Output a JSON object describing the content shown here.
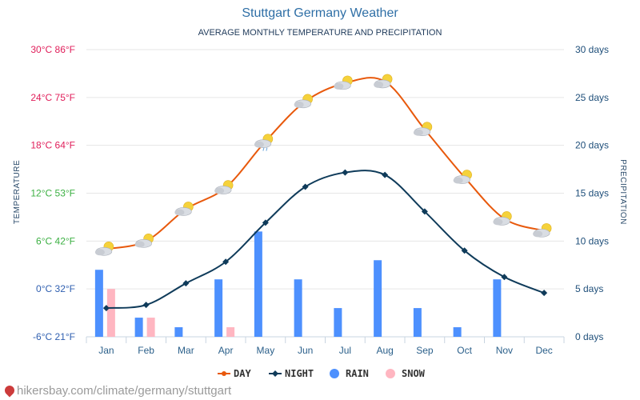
{
  "chart_data": {
    "type": "line",
    "title": "Stuttgart Germany Weather",
    "subtitle": "AVERAGE MONTHLY TEMPERATURE AND PRECIPITATION",
    "categories": [
      "Jan",
      "Feb",
      "Mar",
      "Apr",
      "May",
      "Jun",
      "Jul",
      "Aug",
      "Sep",
      "Oct",
      "Nov",
      "Dec"
    ],
    "ylabel": "TEMPERATURE",
    "y2label": "PRECIPITATION",
    "ylim": [
      -6,
      30
    ],
    "y2lim": [
      0,
      30
    ],
    "yticks": [
      {
        "c": -6,
        "label": "-6°C 21°F"
      },
      {
        "c": 0,
        "label": "0°C 32°F"
      },
      {
        "c": 6,
        "label": "6°C 42°F"
      },
      {
        "c": 12,
        "label": "12°C 53°F"
      },
      {
        "c": 18,
        "label": "18°C 64°F"
      },
      {
        "c": 24,
        "label": "24°C 75°F"
      },
      {
        "c": 30,
        "label": "30°C 86°F"
      }
    ],
    "y2ticks": [
      {
        "d": 0,
        "label": "0 days"
      },
      {
        "d": 5,
        "label": "5 days"
      },
      {
        "d": 10,
        "label": "10 days"
      },
      {
        "d": 15,
        "label": "15 days"
      },
      {
        "d": 20,
        "label": "20 days"
      },
      {
        "d": 25,
        "label": "25 days"
      },
      {
        "d": 30,
        "label": "30 days"
      }
    ],
    "series": [
      {
        "name": "DAY",
        "axis": "temperature",
        "color": "#e8590c",
        "values": [
          5,
          6,
          10,
          12.7,
          18.5,
          23.5,
          25.8,
          26,
          20,
          14,
          8.8,
          7.3
        ]
      },
      {
        "name": "NIGHT",
        "axis": "temperature",
        "color": "#0f3b5a",
        "values": [
          -2.4,
          -2,
          0.7,
          3.4,
          8.3,
          12.8,
          14.6,
          14.3,
          9.7,
          4.8,
          1.5,
          -0.5
        ]
      },
      {
        "name": "RAIN",
        "axis": "precipitation",
        "color": "#4d90fe",
        "values": [
          7,
          2,
          1,
          6,
          11,
          6,
          3,
          8,
          3,
          1,
          6,
          0
        ]
      },
      {
        "name": "SNOW",
        "axis": "precipitation",
        "color": "#ffb6c1",
        "values": [
          5,
          2,
          0,
          1,
          0,
          0,
          0,
          0,
          0,
          0,
          0,
          0
        ]
      }
    ],
    "weather_icons": [
      "partly-cloudy-icon",
      "partly-cloudy-icon",
      "partly-cloudy-icon",
      "partly-cloudy-icon",
      "cloud-rain-sun-icon",
      "partly-cloudy-icon",
      "partly-cloudy-icon",
      "partly-cloudy-icon",
      "partly-cloudy-icon",
      "partly-cloudy-icon",
      "cloud-sun-icon",
      "partly-cloudy-icon"
    ],
    "left_tick_colors": [
      "#2f5fb0",
      "#2f5fb0",
      "#3cb043",
      "#3cb043",
      "#e01e5a",
      "#e01e5a",
      "#e01e5a"
    ],
    "grid": true,
    "legend": "bottom-center"
  },
  "source": {
    "text": "hikersbay.com/climate/germany/stuttgart"
  }
}
